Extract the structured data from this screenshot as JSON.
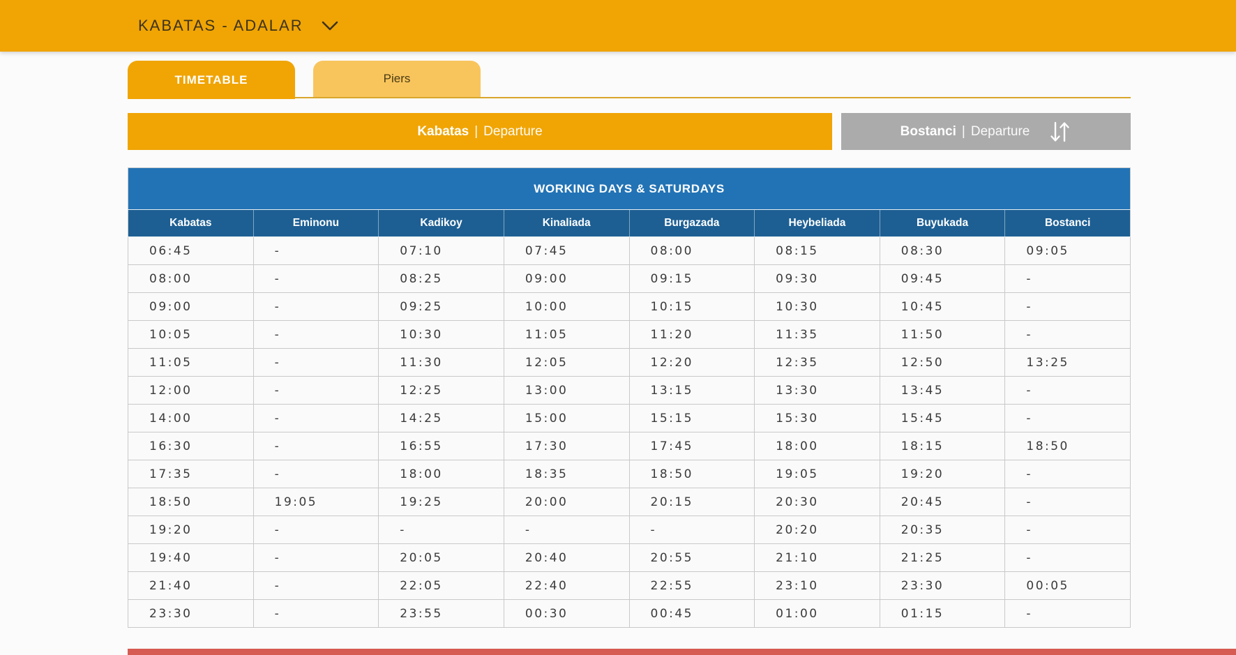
{
  "appbar": {
    "route_selector_label": "KABATAS - ADALAR"
  },
  "tabs": {
    "timetable_label": "TIMETABLE",
    "piers_label": "Piers"
  },
  "direction_buttons": {
    "active": {
      "name": "Kabatas",
      "separator": "|",
      "suffix": "Departure"
    },
    "inactive": {
      "name": "Bostanci",
      "separator": "|",
      "suffix": "Departure"
    },
    "swap_icon": "swap-vertical-arrows"
  },
  "timetable": {
    "banner_title": "WORKING DAYS & SATURDAYS",
    "columns": [
      "Kabatas",
      "Eminonu",
      "Kadikoy",
      "Kinaliada",
      "Burgazada",
      "Heybeliada",
      "Buyukada",
      "Bostanci"
    ],
    "rows": [
      [
        "06:45",
        "-",
        "07:10",
        "07:45",
        "08:00",
        "08:15",
        "08:30",
        "09:05"
      ],
      [
        "08:00",
        "-",
        "08:25",
        "09:00",
        "09:15",
        "09:30",
        "09:45",
        "-"
      ],
      [
        "09:00",
        "-",
        "09:25",
        "10:00",
        "10:15",
        "10:30",
        "10:45",
        "-"
      ],
      [
        "10:05",
        "-",
        "10:30",
        "11:05",
        "11:20",
        "11:35",
        "11:50",
        "-"
      ],
      [
        "11:05",
        "-",
        "11:30",
        "12:05",
        "12:20",
        "12:35",
        "12:50",
        "13:25"
      ],
      [
        "12:00",
        "-",
        "12:25",
        "13:00",
        "13:15",
        "13:30",
        "13:45",
        "-"
      ],
      [
        "14:00",
        "-",
        "14:25",
        "15:00",
        "15:15",
        "15:30",
        "15:45",
        "-"
      ],
      [
        "16:30",
        "-",
        "16:55",
        "17:30",
        "17:45",
        "18:00",
        "18:15",
        "18:50"
      ],
      [
        "17:35",
        "-",
        "18:00",
        "18:35",
        "18:50",
        "19:05",
        "19:20",
        "-"
      ],
      [
        "18:50",
        "19:05",
        "19:25",
        "20:00",
        "20:15",
        "20:30",
        "20:45",
        "-"
      ],
      [
        "19:20",
        "-",
        "-",
        "-",
        "-",
        "20:20",
        "20:35",
        "-"
      ],
      [
        "19:40",
        "-",
        "20:05",
        "20:40",
        "20:55",
        "21:10",
        "21:25",
        "-"
      ],
      [
        "21:40",
        "-",
        "22:05",
        "22:40",
        "22:55",
        "23:10",
        "23:30",
        "00:05"
      ],
      [
        "23:30",
        "-",
        "23:55",
        "00:30",
        "00:45",
        "01:00",
        "01:15",
        "-"
      ]
    ]
  },
  "colors": {
    "orange": "#F0A505",
    "orange-light": "#F8C55D",
    "gold-line": "#D9A62B",
    "blue-banner": "#2273B5",
    "blue-header": "#1D5F93",
    "gray-btn": "#ABABAB",
    "red-bar": "#D65B52",
    "row-bg": "#FAFAFA",
    "row-border": "#C9C9C9",
    "time-text": "#3A3A3A"
  }
}
